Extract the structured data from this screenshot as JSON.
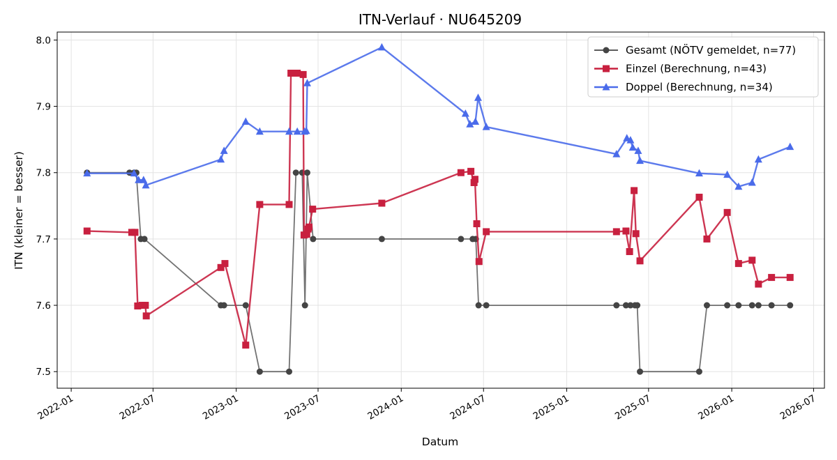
{
  "chart_data": {
    "type": "line",
    "title": "ITN-Verlauf · NU645209",
    "xlabel": "Datum",
    "ylabel": "ITN  (kleiner = besser)",
    "x_axis": "date",
    "xlim": [
      "2021-12-01",
      "2026-07-25"
    ],
    "ylim": [
      7.475,
      8.012
    ],
    "x_ticks": [
      "2022-01-01",
      "2022-07-01",
      "2023-01-01",
      "2023-07-01",
      "2024-01-01",
      "2024-07-01",
      "2025-01-01",
      "2025-07-01",
      "2026-01-01",
      "2026-07-01"
    ],
    "x_tick_labels": [
      "2022-01",
      "2022-07",
      "2023-01",
      "2023-07",
      "2024-01",
      "2024-07",
      "2025-01",
      "2025-07",
      "2026-01",
      "2026-07"
    ],
    "y_ticks": [
      7.5,
      7.6,
      7.7,
      7.8,
      7.9,
      8.0
    ],
    "y_tick_labels": [
      "7.5",
      "7.6",
      "7.7",
      "7.8",
      "7.9",
      "8.0"
    ],
    "grid": true,
    "legend_position": "top-right",
    "series": [
      {
        "name": "Gesamt (NÖTV gemeldet, n=77)",
        "color": "#444444",
        "marker": "circle",
        "points": [
          [
            "2022-02-05",
            7.8
          ],
          [
            "2022-05-10",
            7.8
          ],
          [
            "2022-05-20",
            7.8
          ],
          [
            "2022-05-25",
            7.8
          ],
          [
            "2022-06-04",
            7.7
          ],
          [
            "2022-06-12",
            7.7
          ],
          [
            "2022-11-28",
            7.6
          ],
          [
            "2022-12-05",
            7.6
          ],
          [
            "2023-01-22",
            7.6
          ],
          [
            "2023-02-22",
            7.5
          ],
          [
            "2023-04-28",
            7.5
          ],
          [
            "2023-05-13",
            7.8
          ],
          [
            "2023-05-27",
            7.8
          ],
          [
            "2023-06-02",
            7.6
          ],
          [
            "2023-06-07",
            7.8
          ],
          [
            "2023-06-20",
            7.7
          ],
          [
            "2023-11-19",
            7.7
          ],
          [
            "2024-05-12",
            7.7
          ],
          [
            "2024-06-07",
            7.7
          ],
          [
            "2024-06-14",
            7.7
          ],
          [
            "2024-06-20",
            7.6
          ],
          [
            "2024-07-07",
            7.6
          ],
          [
            "2025-04-21",
            7.6
          ],
          [
            "2025-05-12",
            7.6
          ],
          [
            "2025-05-22",
            7.6
          ],
          [
            "2025-06-01",
            7.6
          ],
          [
            "2025-06-06",
            7.6
          ],
          [
            "2025-06-12",
            7.5
          ],
          [
            "2025-10-21",
            7.5
          ],
          [
            "2025-11-07",
            7.6
          ],
          [
            "2025-12-22",
            7.6
          ],
          [
            "2026-01-16",
            7.6
          ],
          [
            "2026-02-15",
            7.6
          ],
          [
            "2026-03-01",
            7.6
          ],
          [
            "2026-03-30",
            7.6
          ],
          [
            "2026-05-10",
            7.6
          ]
        ]
      },
      {
        "name": "Einzel (Berechnung, n=43)",
        "color": "#c8203f",
        "marker": "square",
        "points": [
          [
            "2022-02-05",
            7.712
          ],
          [
            "2022-05-15",
            7.71
          ],
          [
            "2022-05-22",
            7.71
          ],
          [
            "2022-05-28",
            7.599
          ],
          [
            "2022-06-07",
            7.6
          ],
          [
            "2022-06-14",
            7.6
          ],
          [
            "2022-06-16",
            7.584
          ],
          [
            "2022-11-28",
            7.657
          ],
          [
            "2022-12-07",
            7.663
          ],
          [
            "2023-01-22",
            7.54
          ],
          [
            "2023-02-22",
            7.752
          ],
          [
            "2023-04-28",
            7.752
          ],
          [
            "2023-05-02",
            7.95
          ],
          [
            "2023-05-16",
            7.95
          ],
          [
            "2023-05-29",
            7.948
          ],
          [
            "2023-05-31",
            7.706
          ],
          [
            "2023-06-06",
            7.707
          ],
          [
            "2023-06-09",
            7.715
          ],
          [
            "2023-06-11",
            7.718
          ],
          [
            "2023-06-19",
            7.745
          ],
          [
            "2023-11-19",
            7.754
          ],
          [
            "2024-05-12",
            7.8
          ],
          [
            "2024-06-03",
            7.802
          ],
          [
            "2024-06-10",
            7.785
          ],
          [
            "2024-06-12",
            7.79
          ],
          [
            "2024-06-16",
            7.723
          ],
          [
            "2024-06-21",
            7.666
          ],
          [
            "2024-07-07",
            7.711
          ],
          [
            "2025-04-21",
            7.711
          ],
          [
            "2025-05-12",
            7.712
          ],
          [
            "2025-05-20",
            7.681
          ],
          [
            "2025-05-30",
            7.773
          ],
          [
            "2025-06-03",
            7.708
          ],
          [
            "2025-06-12",
            7.667
          ],
          [
            "2025-10-21",
            7.763
          ],
          [
            "2025-11-07",
            7.7
          ],
          [
            "2025-12-22",
            7.74
          ],
          [
            "2026-01-16",
            7.663
          ],
          [
            "2026-02-15",
            7.668
          ],
          [
            "2026-03-01",
            7.632
          ],
          [
            "2026-03-30",
            7.642
          ],
          [
            "2026-05-10",
            7.642
          ]
        ]
      },
      {
        "name": "Doppel (Berechnung, n=34)",
        "color": "#4a6bea",
        "marker": "triangle",
        "points": [
          [
            "2022-02-05",
            7.799
          ],
          [
            "2022-05-20",
            7.799
          ],
          [
            "2022-05-30",
            7.789
          ],
          [
            "2022-06-10",
            7.789
          ],
          [
            "2022-06-15",
            7.781
          ],
          [
            "2022-11-28",
            7.82
          ],
          [
            "2022-12-05",
            7.833
          ],
          [
            "2023-01-22",
            7.877
          ],
          [
            "2023-02-22",
            7.862
          ],
          [
            "2023-04-28",
            7.862
          ],
          [
            "2023-05-16",
            7.862
          ],
          [
            "2023-06-01",
            7.862
          ],
          [
            "2023-06-05",
            7.863
          ],
          [
            "2023-06-07",
            7.935
          ],
          [
            "2023-11-19",
            7.989
          ],
          [
            "2024-05-22",
            7.889
          ],
          [
            "2024-06-01",
            7.873
          ],
          [
            "2024-06-13",
            7.877
          ],
          [
            "2024-06-19",
            7.913
          ],
          [
            "2024-07-07",
            7.869
          ],
          [
            "2025-04-21",
            7.828
          ],
          [
            "2025-05-14",
            7.852
          ],
          [
            "2025-05-22",
            7.849
          ],
          [
            "2025-05-27",
            7.838
          ],
          [
            "2025-06-08",
            7.833
          ],
          [
            "2025-06-12",
            7.818
          ],
          [
            "2025-10-21",
            7.799
          ],
          [
            "2025-12-22",
            7.797
          ],
          [
            "2026-01-16",
            7.779
          ],
          [
            "2026-02-15",
            7.785
          ],
          [
            "2026-03-01",
            7.82
          ],
          [
            "2026-05-10",
            7.839
          ]
        ]
      }
    ]
  }
}
